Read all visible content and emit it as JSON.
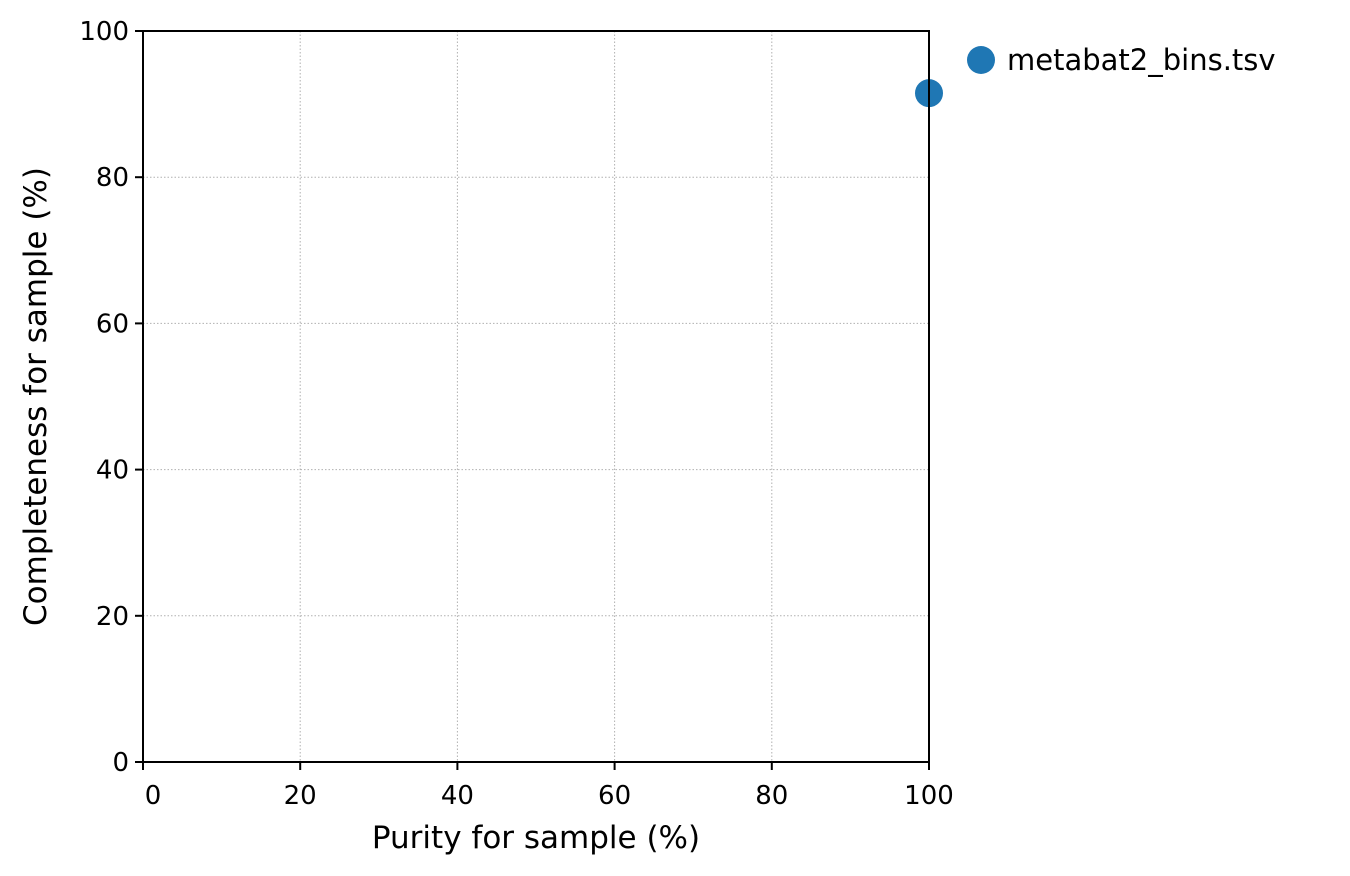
{
  "chart_data": {
    "type": "scatter",
    "title": "",
    "xlabel": "Purity for sample (%)",
    "ylabel": "Completeness for sample (%)",
    "xlim": [
      0,
      100
    ],
    "ylim": [
      0,
      100
    ],
    "xticks": [
      0,
      20,
      40,
      60,
      80,
      100
    ],
    "yticks": [
      0,
      20,
      40,
      60,
      80,
      100
    ],
    "grid": true,
    "legend_position": "outside-top-right",
    "series": [
      {
        "name": "metabat2_bins.tsv",
        "color": "#1f77b4",
        "points": [
          {
            "x": 100,
            "y": 91.5
          }
        ]
      }
    ]
  }
}
